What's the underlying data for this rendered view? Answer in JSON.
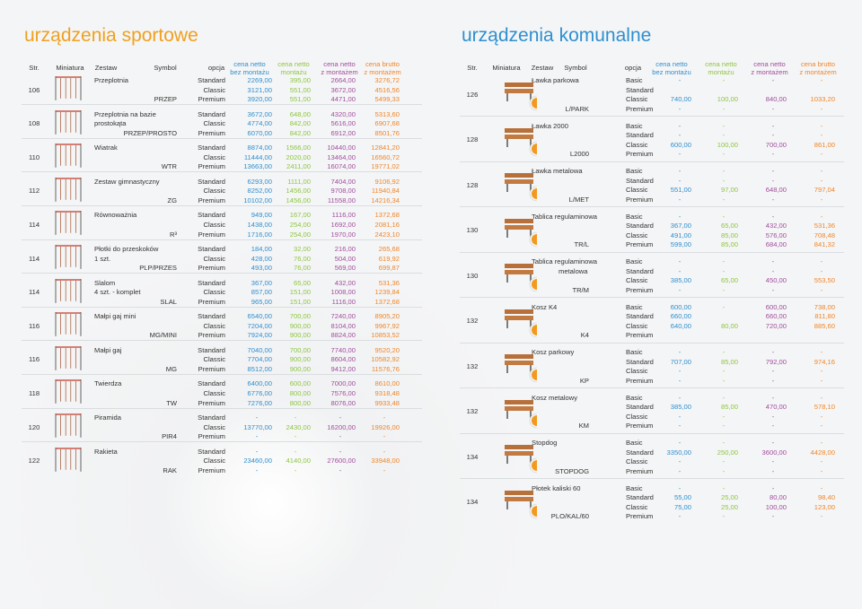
{
  "left": {
    "title": "urządzenia sportowe",
    "headers": [
      "Str.",
      "Miniatura",
      "Zestaw",
      "Symbol",
      "opcja",
      [
        "cena netto",
        "bez montażu"
      ],
      [
        "cena netto",
        "montażu"
      ],
      [
        "cena netto",
        "z montażem"
      ],
      [
        "cena brutto",
        "z montażem"
      ]
    ],
    "groups": [
      {
        "page": "106",
        "name": [
          "Przeplotnia"
        ],
        "symbol": "PRZEP",
        "rows": [
          {
            "option": "Standard",
            "prices": [
              "2269,00",
              "395,00",
              "2664,00",
              "3276,72"
            ]
          },
          {
            "option": "Classic",
            "prices": [
              "3121,00",
              "551,00",
              "3672,00",
              "4516,56"
            ]
          },
          {
            "option": "Premium",
            "prices": [
              "3920,00",
              "551,00",
              "4471,00",
              "5499,33"
            ]
          }
        ]
      },
      {
        "page": "108",
        "name": [
          "Przeplotnia na bazie",
          "prostokąta"
        ],
        "symbol": "PRZEP/PROSTO",
        "rows": [
          {
            "option": "Standard",
            "prices": [
              "3672,00",
              "648,00",
              "4320,00",
              "5313,60"
            ]
          },
          {
            "option": "Classic",
            "prices": [
              "4774,00",
              "842,00",
              "5616,00",
              "6907,68"
            ]
          },
          {
            "option": "Premium",
            "prices": [
              "6070,00",
              "842,00",
              "6912,00",
              "8501,76"
            ]
          }
        ]
      },
      {
        "page": "110",
        "name": [
          "Wiatrak"
        ],
        "symbol": "WTR",
        "rows": [
          {
            "option": "Standard",
            "prices": [
              "8874,00",
              "1566,00",
              "10440,00",
              "12841,20"
            ]
          },
          {
            "option": "Classic",
            "prices": [
              "11444,00",
              "2020,00",
              "13464,00",
              "16560,72"
            ]
          },
          {
            "option": "Premium",
            "prices": [
              "13663,00",
              "2411,00",
              "16074,00",
              "19771,02"
            ]
          }
        ]
      },
      {
        "page": "112",
        "name": [
          "Zestaw gimnastyczny"
        ],
        "symbol": "ZG",
        "rows": [
          {
            "option": "Standard",
            "prices": [
              "6293,00",
              "1111,00",
              "7404,00",
              "9106,92"
            ]
          },
          {
            "option": "Classic",
            "prices": [
              "8252,00",
              "1456,00",
              "9708,00",
              "11940,84"
            ]
          },
          {
            "option": "Premium",
            "prices": [
              "10102,00",
              "1456,00",
              "11558,00",
              "14216,34"
            ]
          }
        ]
      },
      {
        "page": "114",
        "name": [
          "Równoważnia"
        ],
        "symbol": "R³",
        "rows": [
          {
            "option": "Standard",
            "prices": [
              "949,00",
              "167,00",
              "1116,00",
              "1372,68"
            ]
          },
          {
            "option": "Classic",
            "prices": [
              "1438,00",
              "254,00",
              "1692,00",
              "2081,16"
            ]
          },
          {
            "option": "Premium",
            "prices": [
              "1716,00",
              "254,00",
              "1970,00",
              "2423,10"
            ]
          }
        ]
      },
      {
        "page": "114",
        "name": [
          "Płotki do przeskoków",
          "1 szt."
        ],
        "symbol": "PLP/PRZES",
        "rows": [
          {
            "option": "Standard",
            "prices": [
              "184,00",
              "32,00",
              "216,00",
              "265,68"
            ]
          },
          {
            "option": "Classic",
            "prices": [
              "428,00",
              "76,00",
              "504,00",
              "619,92"
            ]
          },
          {
            "option": "Premium",
            "prices": [
              "493,00",
              "76,00",
              "569,00",
              "699,87"
            ]
          }
        ]
      },
      {
        "page": "114",
        "name": [
          "Slalom",
          "4 szt. - komplet"
        ],
        "symbol": "SLAL",
        "rows": [
          {
            "option": "Standard",
            "prices": [
              "367,00",
              "65,00",
              "432,00",
              "531,36"
            ]
          },
          {
            "option": "Classic",
            "prices": [
              "857,00",
              "151,00",
              "1008,00",
              "1239,84"
            ]
          },
          {
            "option": "Premium",
            "prices": [
              "965,00",
              "151,00",
              "1116,00",
              "1372,68"
            ]
          }
        ]
      },
      {
        "page": "116",
        "name": [
          "Małpi gaj mini"
        ],
        "symbol": "MG/MINI",
        "rows": [
          {
            "option": "Standard",
            "prices": [
              "6540,00",
              "700,00",
              "7240,00",
              "8905,20"
            ]
          },
          {
            "option": "Classic",
            "prices": [
              "7204,00",
              "900,00",
              "8104,00",
              "9967,92"
            ]
          },
          {
            "option": "Premium",
            "prices": [
              "7924,00",
              "900,00",
              "8824,00",
              "10853,52"
            ]
          }
        ]
      },
      {
        "page": "116",
        "name": [
          "Małpi gaj"
        ],
        "symbol": "MG",
        "rows": [
          {
            "option": "Standard",
            "prices": [
              "7040,00",
              "700,00",
              "7740,00",
              "9520,20"
            ]
          },
          {
            "option": "Classic",
            "prices": [
              "7704,00",
              "900,00",
              "8604,00",
              "10582,92"
            ]
          },
          {
            "option": "Premium",
            "prices": [
              "8512,00",
              "900,00",
              "9412,00",
              "11576,76"
            ]
          }
        ]
      },
      {
        "page": "118",
        "name": [
          "Twierdza"
        ],
        "symbol": "TW",
        "rows": [
          {
            "option": "Standard",
            "prices": [
              "6400,00",
              "600,00",
              "7000,00",
              "8610,00"
            ]
          },
          {
            "option": "Classic",
            "prices": [
              "6776,00",
              "800,00",
              "7576,00",
              "9318,48"
            ]
          },
          {
            "option": "Premium",
            "prices": [
              "7276,00",
              "800,00",
              "8076,00",
              "9933,48"
            ]
          }
        ]
      },
      {
        "page": "120",
        "name": [
          "Piramida"
        ],
        "symbol": "PIR4",
        "rows": [
          {
            "option": "Standard",
            "prices": [
              "-",
              "-",
              "-",
              "-"
            ]
          },
          {
            "option": "Classic",
            "prices": [
              "13770,00",
              "2430,00",
              "16200,00",
              "19926,00"
            ]
          },
          {
            "option": "Premium",
            "prices": [
              "-",
              "-",
              "-",
              "-"
            ]
          }
        ]
      },
      {
        "page": "122",
        "name": [
          "Rakieta"
        ],
        "symbol": "RAK",
        "rows": [
          {
            "option": "Standard",
            "prices": [
              "-",
              "-",
              "-",
              "-"
            ]
          },
          {
            "option": "Classic",
            "prices": [
              "23460,00",
              "4140,00",
              "27600,00",
              "33948,00"
            ]
          },
          {
            "option": "Premium",
            "prices": [
              "-",
              "-",
              "-",
              "-"
            ]
          }
        ]
      }
    ]
  },
  "right": {
    "title": "urządzenia komunalne",
    "headers": [
      "Str.",
      "Miniatura",
      "Zestaw",
      "Symbol",
      "opcja",
      [
        "cena netto",
        "bez montażu"
      ],
      [
        "cena netto",
        "montażu"
      ],
      [
        "cena netto",
        "z montażem"
      ],
      [
        "cena brutto",
        "z montażem"
      ]
    ],
    "groups": [
      {
        "page": "126",
        "name": [
          "Ławka parkowa"
        ],
        "symbol": "L/PARK",
        "rows": [
          {
            "option": "Basic",
            "prices": [
              "-",
              "-",
              "-",
              "-"
            ]
          },
          {
            "option": "Standard",
            "prices": [
              null,
              null,
              null,
              null
            ]
          },
          {
            "option": "Classic",
            "prices": [
              "740,00",
              "100,00",
              "840,00",
              "1033,20"
            ]
          },
          {
            "option": "Premium",
            "prices": [
              "-",
              "-",
              "-",
              "-"
            ]
          }
        ]
      },
      {
        "page": "128",
        "name": [
          "Ławka 2000"
        ],
        "symbol": "L2000",
        "rows": [
          {
            "option": "Basic",
            "prices": [
              "-",
              "-",
              "-",
              "-"
            ]
          },
          {
            "option": "Standard",
            "prices": [
              "-",
              "-",
              "-",
              "-"
            ]
          },
          {
            "option": "Classic",
            "prices": [
              "600,00",
              "100,00",
              "700,00",
              "861,00"
            ]
          },
          {
            "option": "Premium",
            "prices": [
              "-",
              "-",
              "-",
              "-"
            ]
          }
        ]
      },
      {
        "page": "128",
        "name": [
          "Ławka metalowa"
        ],
        "symbol": "L/MET",
        "rows": [
          {
            "option": "Basic",
            "prices": [
              "-",
              "-",
              "-",
              "-"
            ]
          },
          {
            "option": "Standard",
            "prices": [
              "-",
              "-",
              "-",
              "-"
            ]
          },
          {
            "option": "Classic",
            "prices": [
              "551,00",
              "97,00",
              "648,00",
              "797,04"
            ]
          },
          {
            "option": "Premium",
            "prices": [
              "-",
              "-",
              "-",
              "-"
            ]
          }
        ]
      },
      {
        "page": "130",
        "name": [
          "Tablica regulaminowa"
        ],
        "symbol": "TR/L",
        "rows": [
          {
            "option": "Basic",
            "prices": [
              "-",
              "-",
              "-",
              "-"
            ]
          },
          {
            "option": "Standard",
            "prices": [
              "367,00",
              "65,00",
              "432,00",
              "531,36"
            ]
          },
          {
            "option": "Classic",
            "prices": [
              "491,00",
              "85,00",
              "576,00",
              "708,48"
            ]
          },
          {
            "option": "Premium",
            "prices": [
              "599,00",
              "85,00",
              "684,00",
              "841,32"
            ]
          }
        ]
      },
      {
        "page": "130",
        "name": [
          "Tablica regulaminowa",
          "metalowa"
        ],
        "symbol": "TR/M",
        "rows": [
          {
            "option": "Basic",
            "prices": [
              "-",
              "-",
              "-",
              "-"
            ]
          },
          {
            "option": "Standard",
            "prices": [
              "-",
              "-",
              "-",
              "-"
            ]
          },
          {
            "option": "Classic",
            "prices": [
              "385,00",
              "65,00",
              "450,00",
              "553,50"
            ]
          },
          {
            "option": "Premium",
            "prices": [
              "-",
              "-",
              "-",
              "-"
            ]
          }
        ]
      },
      {
        "page": "132",
        "name": [
          "Kosz K4"
        ],
        "symbol": "K4",
        "rows": [
          {
            "option": "Basic",
            "prices": [
              "600,00",
              "-",
              "600,00",
              "738,00"
            ]
          },
          {
            "option": "Standard",
            "prices": [
              "660,00",
              null,
              "660,00",
              "811,80"
            ]
          },
          {
            "option": "Classic",
            "prices": [
              "640,00",
              "80,00",
              "720,00",
              "885,60"
            ]
          },
          {
            "option": "Premium",
            "prices": [
              null,
              null,
              null,
              null
            ]
          }
        ]
      },
      {
        "page": "132",
        "name": [
          "Kosz parkowy"
        ],
        "symbol": "KP",
        "rows": [
          {
            "option": "Basic",
            "prices": [
              "-",
              "-",
              "-",
              "-"
            ]
          },
          {
            "option": "Standard",
            "prices": [
              "707,00",
              "85,00",
              "792,00",
              "974,16"
            ]
          },
          {
            "option": "Classic",
            "prices": [
              "-",
              "-",
              "-",
              "-"
            ]
          },
          {
            "option": "Premium",
            "prices": [
              "-",
              "-",
              "-",
              "-"
            ]
          }
        ]
      },
      {
        "page": "132",
        "name": [
          "Kosz metalowy"
        ],
        "symbol": "KM",
        "rows": [
          {
            "option": "Basic",
            "prices": [
              "-",
              "-",
              "-",
              "-"
            ]
          },
          {
            "option": "Standard",
            "prices": [
              "385,00",
              "85,00",
              "470,00",
              "578,10"
            ]
          },
          {
            "option": "Classic",
            "prices": [
              "-",
              "-",
              "-",
              "-"
            ]
          },
          {
            "option": "Premium",
            "prices": [
              "-",
              "-",
              "-",
              "-"
            ]
          }
        ]
      },
      {
        "page": "134",
        "name": [
          "Stopdog"
        ],
        "symbol": "STOPDOG",
        "rows": [
          {
            "option": "Basic",
            "prices": [
              "-",
              "-",
              "-",
              "-"
            ]
          },
          {
            "option": "Standard",
            "prices": [
              "3350,00",
              "250,00",
              "3600,00",
              "4428,00"
            ]
          },
          {
            "option": "Classic",
            "prices": [
              "-",
              "-",
              "-",
              "-"
            ]
          },
          {
            "option": "Premium",
            "prices": [
              "-",
              "-",
              "-",
              "-"
            ]
          }
        ]
      },
      {
        "page": "134",
        "name": [
          "Płotek kaliski 60"
        ],
        "symbol": "PLO/KAL/60",
        "rows": [
          {
            "option": "Basic",
            "prices": [
              "-",
              "-",
              "-",
              "-"
            ]
          },
          {
            "option": "Standard",
            "prices": [
              "55,00",
              "25,00",
              "80,00",
              "98,40"
            ]
          },
          {
            "option": "Classic",
            "prices": [
              "75,00",
              "25,00",
              "100,00",
              "123,00"
            ]
          },
          {
            "option": "Premium",
            "prices": [
              "-",
              "-",
              "-",
              "-"
            ]
          }
        ]
      }
    ]
  }
}
